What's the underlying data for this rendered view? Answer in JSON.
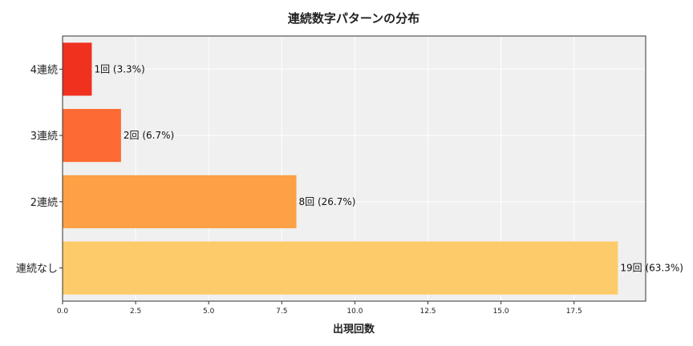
{
  "chart_data": {
    "type": "bar",
    "orientation": "horizontal",
    "title": "連続数字パターンの分布",
    "xlabel": "出現回数",
    "ylabel": "",
    "categories": [
      "連続なし",
      "2連続",
      "3連続",
      "4連続"
    ],
    "values": [
      19,
      8,
      2,
      1
    ],
    "data_labels": [
      "19回 (63.3%)",
      "8回 (26.7%)",
      "2回 (6.7%)",
      "1回 (3.3%)"
    ],
    "colors": [
      "#FECB6A",
      "#FDA046",
      "#FD6A33",
      "#F0311F"
    ],
    "xlim": [
      0,
      19.95
    ],
    "xticks": [
      0,
      2.5,
      5,
      7.5,
      10,
      12.5,
      15,
      17.5
    ],
    "xtick_labels": [
      "0.0",
      "2.5",
      "5.0",
      "7.5",
      "10.0",
      "12.5",
      "15.0",
      "17.5"
    ],
    "grid": true,
    "background": "#F0F0F0"
  }
}
